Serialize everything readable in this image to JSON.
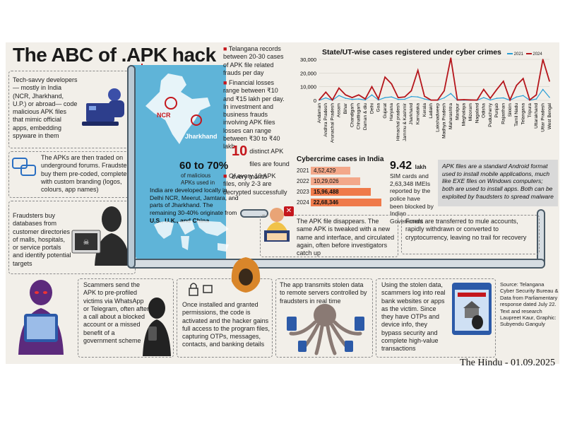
{
  "title": "The ABC of .APK hack",
  "steps": {
    "s1": "Tech-savvy developers — mostly in India (NCR, Jharkhand, U.P.) or abroad— code malicious APK files that mimic official apps, embedding spyware in them",
    "s2": "The APKs are then traded on underground forums. Fraudsters buy them pre-coded, complete with custom branding (logos, colours, app names)",
    "s3": "Fraudsters buy databases from customer directories of malls, hospitals, or service portals and identify potential targets",
    "s4": "Scammers send the APK to pre-profiled victims via WhatsApp or Telegram, often after a call about a blocked account or a missed benefit of a government scheme",
    "s5": "Once installed and granted permissions, the code is activated and the hacker gains full access to the program files, capturing OTPs, messages, contacts, and banking details",
    "s6": "The app transmits stolen data to remote servers controlled by fraudsters in real time",
    "s7": "Using the stolen data, scammers log into real bank websites or apps as the victim. Since they have OTPs and device info, they bypass security and complete high-value transactions",
    "s8": "The APK file disappears. The same APK is tweaked with a new name and interface, and circulated again, often before investigators catch up",
    "s9": "Funds are transferred to mule accounts, rapidly withdrawn or converted to cryptocurrency, leaving no trail for recovery"
  },
  "map": {
    "labels": [
      "NCR",
      "Jharkhand"
    ],
    "stat_big": "60 to 70%",
    "stat_sub": "of malicious APKs used in",
    "stat_body_pre": "India are developed locally in Delhi NCR, Meerut, Jamtara, and parts of Jharkhand. The remaining 30-40% originate from ",
    "stat_body_bold": "U.S., U.K., and China"
  },
  "facts": [
    "Telangana records between 20-30 cases of APK file related frauds per day",
    "Financial losses range between ₹10 and ₹15 lakh per day. In investment and business frauds involving APK files losses can range between ₹30 to ₹40 lakh"
  ],
  "distinct": {
    "num": "10",
    "text": "distinct APK files are found every month"
  },
  "of_every": "Of every 10 APK files, only 2-3 are decrypted successfully",
  "cyber_title": "Cybercrime cases in India",
  "cyber_rows": [
    {
      "year": "2021",
      "value": "4,52,429",
      "n": 452429
    },
    {
      "year": "2022",
      "value": "10,29,026",
      "n": 1029026
    },
    {
      "year": "2023",
      "value": "15,96,488",
      "n": 1596488
    },
    {
      "year": "2024",
      "value": "22,68,346",
      "n": 2268346
    }
  ],
  "sim": {
    "num": "9.42",
    "unit": "lakh",
    "text": "SIM cards and 2,63,348 IMEIs reported by the police have been blocked by Indian Government"
  },
  "apk_def": "APK files are a standard Android format used to install mobile applications, much like EXE files on Windows computers; both are used to install apps. Both can be exploited by fraudsters to spread malware",
  "source": "Source: Telangana Cyber Security Bureau & Data from Parliamentary response dated July 22. Text and research Laupreet Kaur, Graphic: Subyendu Ganguly",
  "credit": "The Hindu - 01.09.2025",
  "chart_data": {
    "type": "line",
    "title": "State/UT-wise cases registered under cyber crimes",
    "x": [
      "Andaman",
      "Andhra Pradesh",
      "Arunachal Pradesh",
      "Assam",
      "Bihar",
      "Chandigarh",
      "Chhattisgarh",
      "Daman & diu",
      "Delhi",
      "Goa",
      "Gujarat",
      "Haryana",
      "Himachal pradesh",
      "Jammu & Kashmir",
      "Jharkhand",
      "Karnataka",
      "Kerala",
      "Ladakh",
      "Lakshadweep",
      "Madhya Pradesh",
      "Maharashtra",
      "Manipur",
      "Meghalaya",
      "Mizoram",
      "Nagaland",
      "Odisha",
      "Puducherry",
      "Punjab",
      "Rajasthan",
      "Sikkim",
      "Tamil Nadu",
      "Telangana",
      "Tripura",
      "Uttarakhand",
      "Uttar Pradesh",
      "West Bengal"
    ],
    "series": [
      {
        "name": "2021",
        "color": "#2a9fd6",
        "values": [
          100,
          1800,
          100,
          3500,
          1500,
          700,
          1000,
          300,
          4000,
          300,
          2000,
          2500,
          700,
          800,
          2800,
          2500,
          1000,
          100,
          100,
          1800,
          5000,
          100,
          100,
          100,
          100,
          2000,
          300,
          1500,
          1800,
          100,
          2500,
          3500,
          100,
          1000,
          8000,
          2200
        ]
      },
      {
        "name": "2024",
        "color": "#b5161c",
        "values": [
          400,
          6000,
          300,
          9000,
          4000,
          2000,
          4000,
          1000,
          10000,
          1000,
          17000,
          12000,
          2000,
          2500,
          7000,
          22000,
          3000,
          200,
          200,
          7000,
          31000,
          300,
          500,
          300,
          200,
          8000,
          1500,
          8000,
          14000,
          300,
          11000,
          16000,
          300,
          4000,
          30000,
          14000
        ]
      }
    ],
    "ylim": [
      0,
      30000
    ],
    "yticks": [
      "0",
      "10,000",
      "20,000",
      "30,000"
    ],
    "legend": "top-right"
  }
}
